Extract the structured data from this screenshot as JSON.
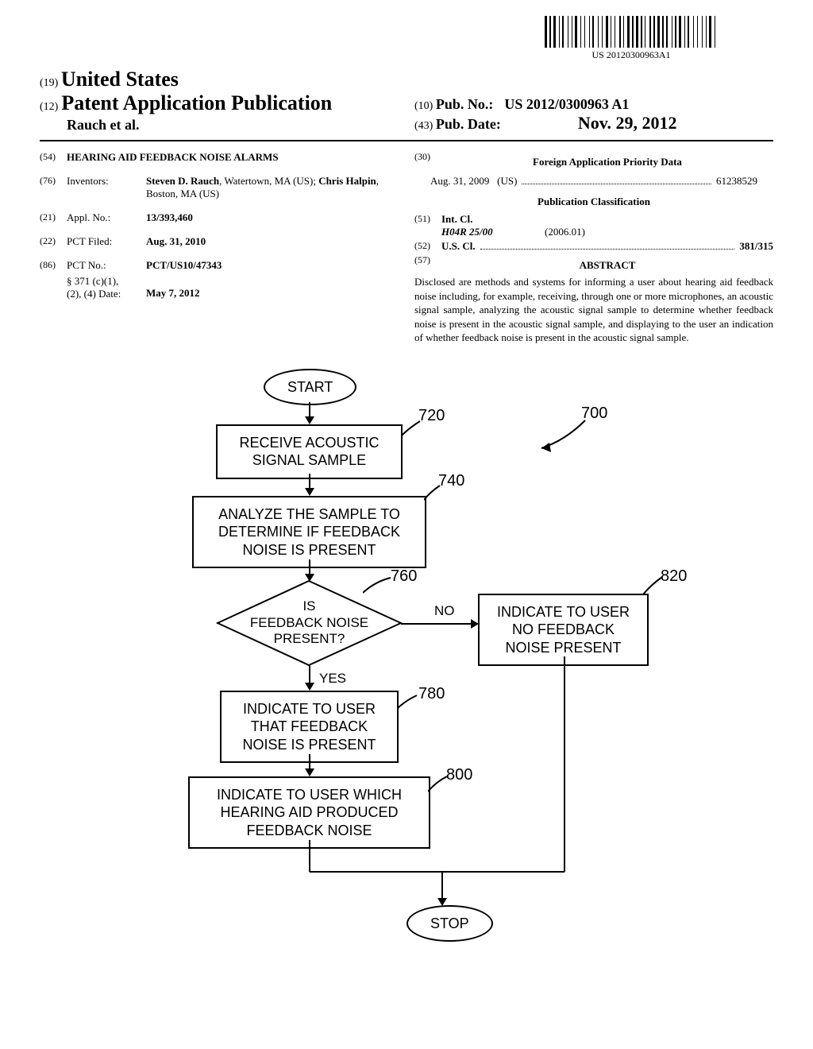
{
  "barcode": {
    "number": "US 20120300963A1",
    "widths": [
      3,
      1,
      2,
      1,
      3,
      2,
      1,
      1,
      2,
      3,
      1,
      2,
      1,
      1,
      3,
      2,
      1,
      2,
      1,
      3,
      1,
      1,
      2,
      3,
      1,
      2,
      1,
      2,
      3,
      1,
      1,
      2,
      1,
      3,
      2,
      1,
      1,
      2,
      3,
      1,
      2,
      1,
      3,
      1,
      2,
      1,
      1,
      3,
      2,
      1,
      2,
      1,
      3,
      1,
      2,
      1,
      2,
      3,
      1,
      1,
      2,
      1,
      3,
      2,
      1,
      1,
      2,
      3,
      1,
      2,
      1,
      3,
      1,
      2,
      1,
      1,
      3,
      2,
      1,
      2
    ]
  },
  "header": {
    "code19": "(19)",
    "country": "United States",
    "code12": "(12)",
    "docType": "Patent Application Publication",
    "authors": "Rauch et al.",
    "code10": "(10)",
    "pubNoLabel": "Pub. No.:",
    "pubNo": "US 2012/0300963 A1",
    "code43": "(43)",
    "pubDateLabel": "Pub. Date:",
    "pubDate": "Nov. 29, 2012"
  },
  "leftCol": {
    "titleCode": "(54)",
    "title": "HEARING AID FEEDBACK NOISE ALARMS",
    "inventorsCode": "(76)",
    "inventorsLabel": "Inventors:",
    "inventors": "Steven D. Rauch, Watertown, MA (US); Chris Halpin, Boston, MA (US)",
    "applNoCode": "(21)",
    "applNoLabel": "Appl. No.:",
    "applNo": "13/393,460",
    "pctFiledCode": "(22)",
    "pctFiledLabel": "PCT Filed:",
    "pctFiled": "Aug. 31, 2010",
    "pctNoCode": "(86)",
    "pctNoLabel": "PCT No.:",
    "pctNo": "PCT/US10/47343",
    "sec371Label": "§ 371 (c)(1),\n(2), (4) Date:",
    "sec371Date": "May 7, 2012"
  },
  "rightCol": {
    "priorityCode": "(30)",
    "priorityHeading": "Foreign Application Priority Data",
    "priorityDate": "Aug. 31, 2009",
    "priorityCountry": "(US)",
    "priorityNum": "61238529",
    "clsHeading": "Publication Classification",
    "intClCode": "(51)",
    "intClLabel": "Int. Cl.",
    "intClSymbol": "H04R 25/00",
    "intClDate": "(2006.01)",
    "usClCode": "(52)",
    "usClLabel": "U.S. Cl.",
    "usClVal": "381/315",
    "abstractCode": "(57)",
    "abstractHeading": "ABSTRACT",
    "abstractText": "Disclosed are methods and systems for informing a user about hearing aid feedback noise including, for example, receiving, through one or more microphones, an acoustic signal sample, analyzing the acoustic signal sample to determine whether feedback noise is present in the acoustic signal sample, and displaying to the user an indication of whether feedback noise is present in the acoustic signal sample."
  },
  "flowchart": {
    "labels": {
      "n700": "700",
      "n720": "720",
      "n740": "740",
      "n760": "760",
      "n780": "780",
      "n800": "800",
      "n820": "820"
    },
    "start": "START",
    "step720": "RECEIVE ACOUSTIC\nSIGNAL SAMPLE",
    "step740": "ANALYZE THE SAMPLE TO\nDETERMINE IF FEEDBACK\nNOISE IS PRESENT",
    "decision760": "IS\nFEEDBACK NOISE\nPRESENT?",
    "branchYes": "YES",
    "branchNo": "NO",
    "step780": "INDICATE TO USER\nTHAT FEEDBACK\nNOISE IS PRESENT",
    "step800": "INDICATE TO USER WHICH\nHEARING AID PRODUCED\nFEEDBACK NOISE",
    "step820": "INDICATE TO USER\nNO FEEDBACK\nNOISE PRESENT",
    "stop": "STOP"
  }
}
